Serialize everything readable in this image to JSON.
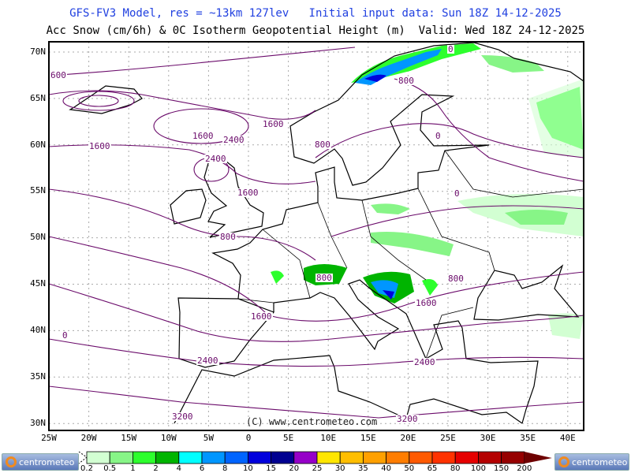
{
  "header": {
    "line1": "GFS-FV3 Model, res = ~13km 127lev   Initial input data: Sun 18Z 14-12-2025",
    "line2": "Acc Snow (cm/6h) & 0C Isotherm Geopotential Height (m)  Valid: Wed 18Z 24-12-2025"
  },
  "map": {
    "lat_labels": [
      "70N",
      "65N",
      "60N",
      "55N",
      "50N",
      "45N",
      "40N",
      "35N",
      "30N"
    ],
    "lon_labels": [
      "25W",
      "20W",
      "15W",
      "10W",
      "5W",
      "0",
      "5E",
      "10E",
      "15E",
      "20E",
      "25E",
      "30E",
      "35E",
      "40E"
    ],
    "contour_color": "#6a0a6a",
    "contour_labels": [
      "600",
      "1600",
      "1600",
      "2400",
      "2400",
      "1600",
      "1600",
      "800",
      "800",
      "0",
      "800",
      "0",
      "0",
      "800",
      "800",
      "1600",
      "1600",
      "2400",
      "2400",
      "3200",
      "3200",
      "0"
    ],
    "watermark": "(C) www.centrometeo.com"
  },
  "colorbar": {
    "levels": [
      "0.2",
      "0.5",
      "1",
      "2",
      "4",
      "6",
      "8",
      "10",
      "15",
      "20",
      "25",
      "30",
      "35",
      "40",
      "50",
      "65",
      "80",
      "100",
      "150",
      "200"
    ],
    "colors": [
      "#d2ffd2",
      "#87f587",
      "#2dff2d",
      "#00b400",
      "#00ffff",
      "#0096ff",
      "#0064ff",
      "#0000dc",
      "#000090",
      "#9600c8",
      "#ffe600",
      "#ffbe00",
      "#ffa000",
      "#ff7d00",
      "#ff5a00",
      "#ff3200",
      "#e60000",
      "#b40000",
      "#960000",
      "#6e0000"
    ]
  },
  "logos": {
    "left": "centrometeo",
    "right": "centrometeo"
  }
}
